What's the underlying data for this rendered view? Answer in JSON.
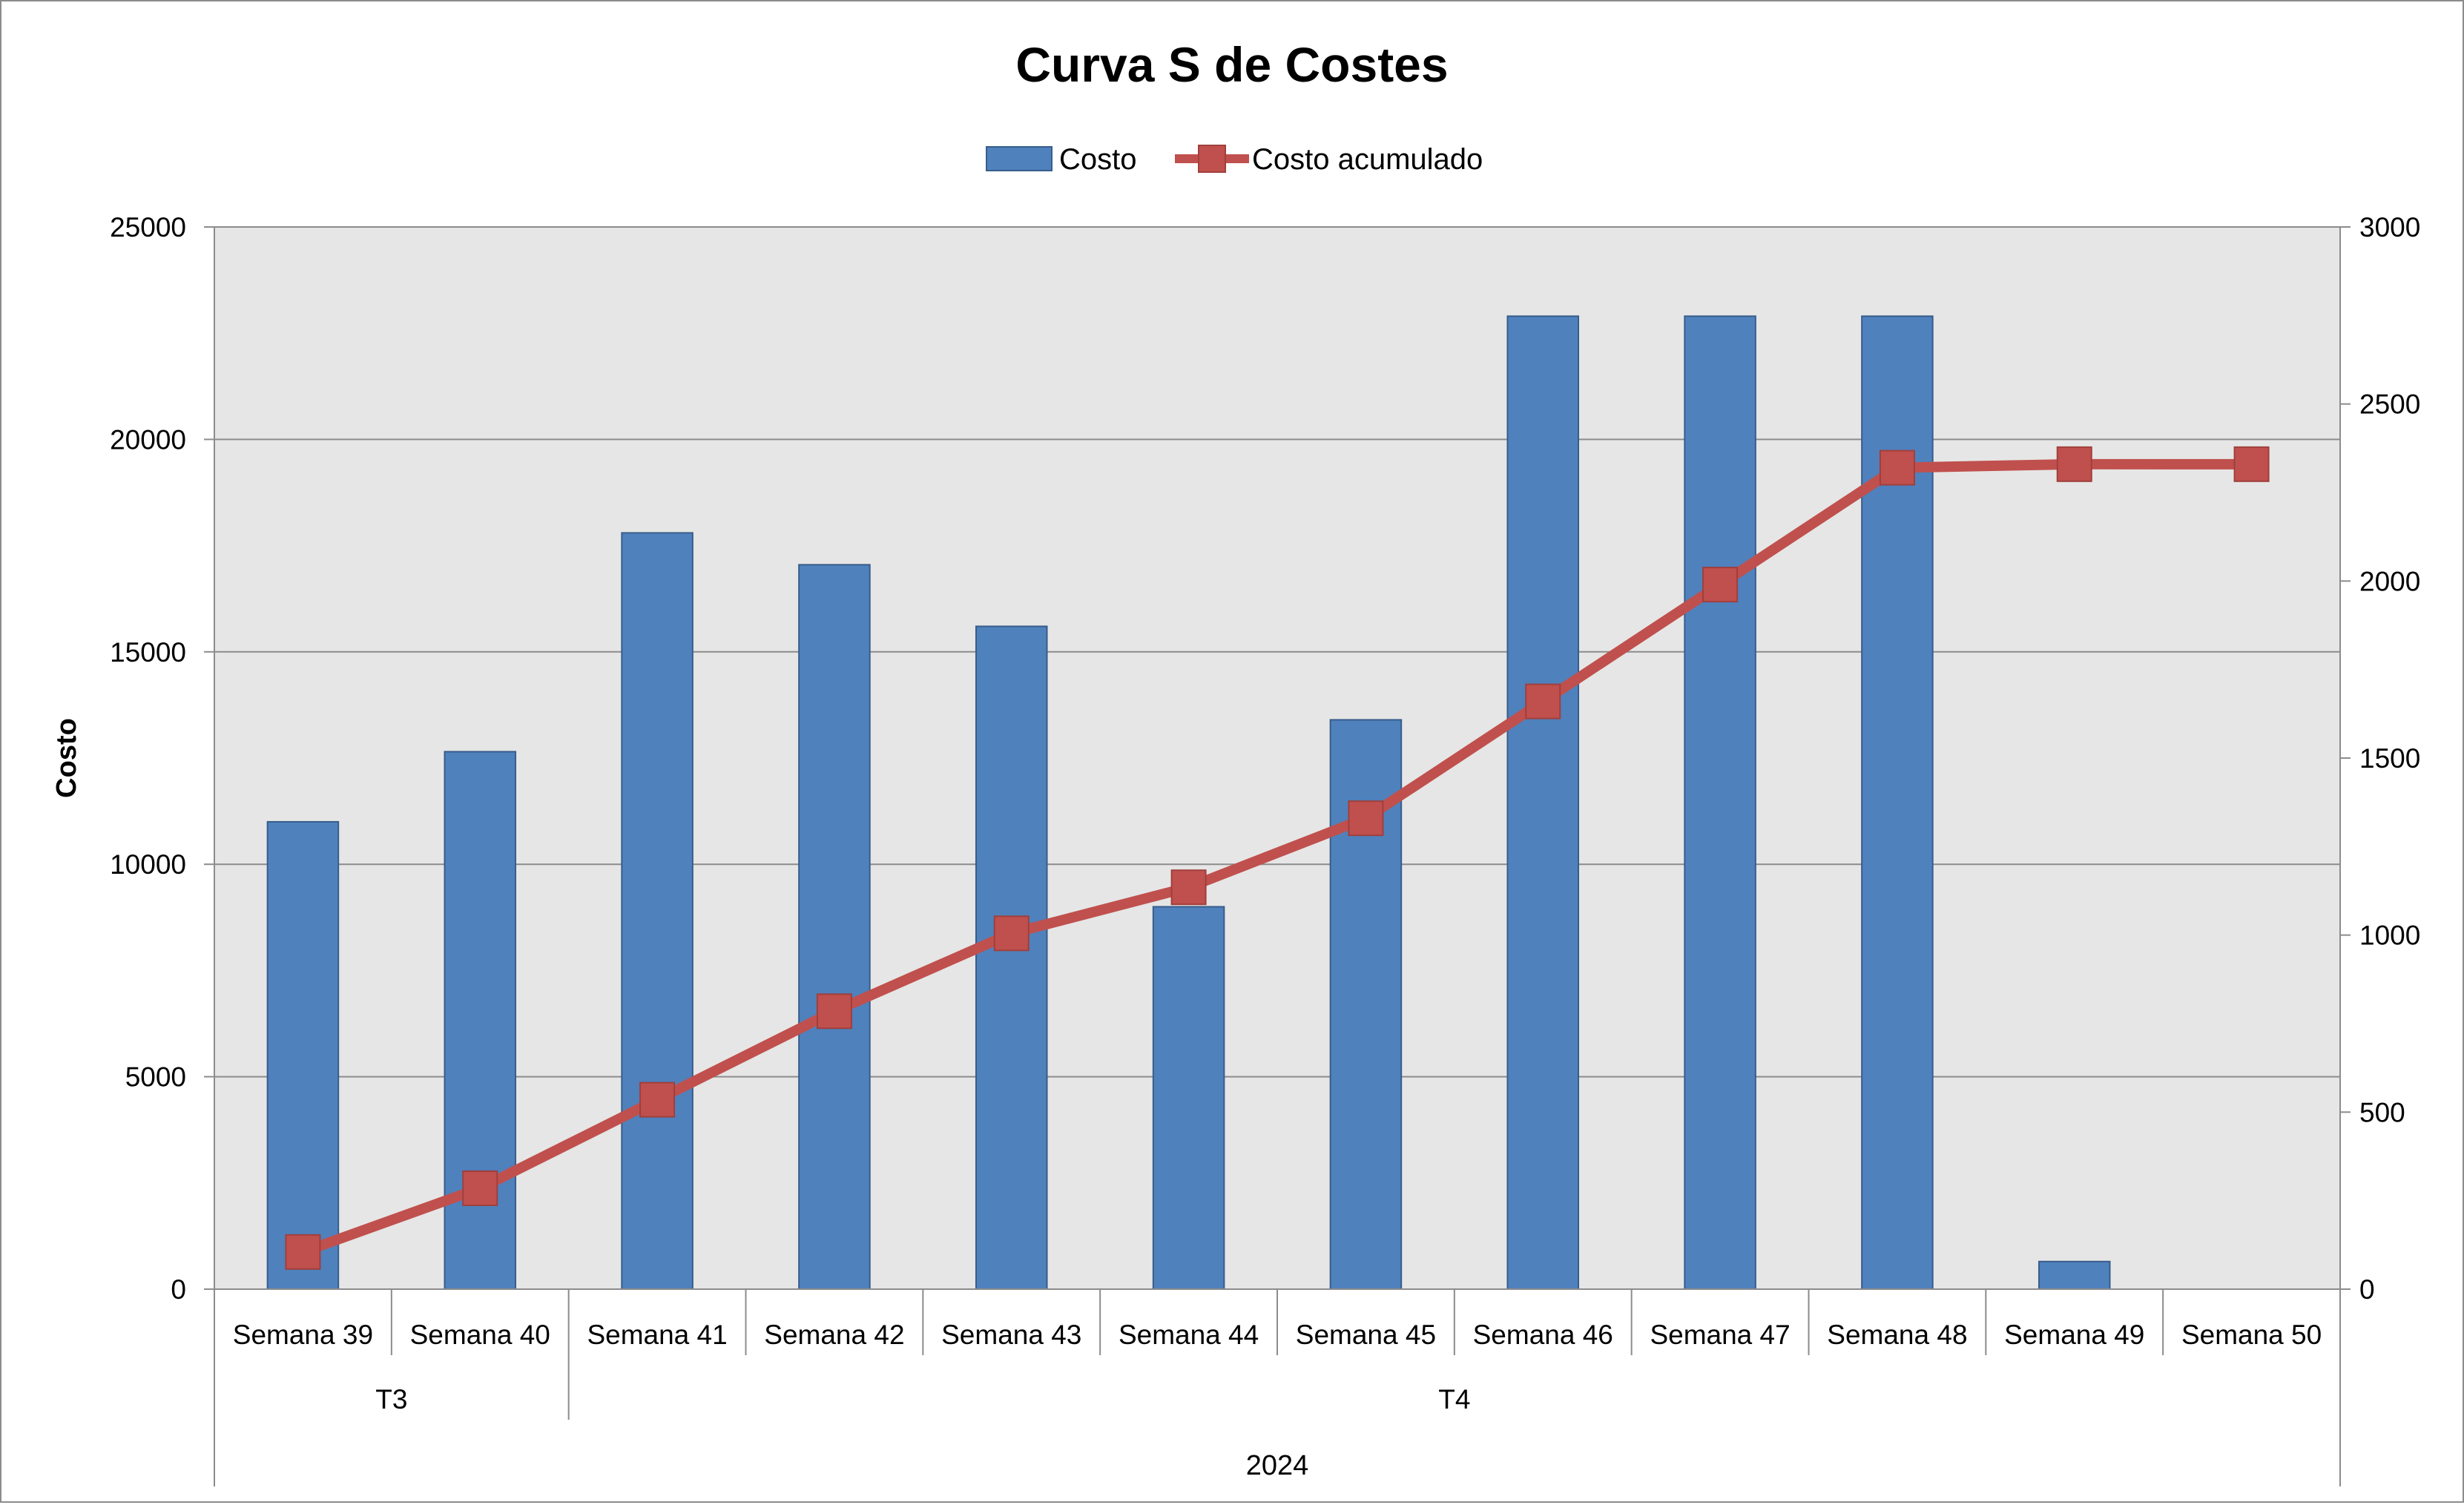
{
  "chart_data": {
    "type": "bar",
    "title": "Curva S de Costes",
    "ylabel": "Costo",
    "y2label": "",
    "xlabel": "",
    "categories": [
      "Semana 39",
      "Semana 40",
      "Semana 41",
      "Semana 42",
      "Semana 43",
      "Semana 44",
      "Semana 45",
      "Semana 46",
      "Semana 47",
      "Semana 48",
      "Semana 49",
      "Semana 50"
    ],
    "groups": [
      {
        "label": "T3",
        "span": 2
      },
      {
        "label": "T4",
        "span": 10
      }
    ],
    "year": "2024",
    "ylim": [
      0,
      25000
    ],
    "y2lim": [
      0,
      3000
    ],
    "yticks": [
      0,
      5000,
      10000,
      15000,
      20000,
      25000
    ],
    "y2ticks": [
      0,
      500,
      1000,
      1500,
      2000,
      2500,
      3000
    ],
    "grid": true,
    "legend_position": "top",
    "series": [
      {
        "name": "Costo",
        "type": "bar",
        "axis": "left",
        "color": "#4f81bd",
        "values": [
          11000,
          12650,
          17800,
          17050,
          15600,
          9000,
          13400,
          22900,
          22900,
          22900,
          650,
          0
        ]
      },
      {
        "name": "Costo acumulado",
        "type": "line",
        "axis": "right",
        "color": "#c0504d",
        "values": [
          105,
          285,
          535,
          785,
          1005,
          1135,
          1330,
          1660,
          1990,
          2320,
          2330,
          2330
        ]
      }
    ]
  }
}
